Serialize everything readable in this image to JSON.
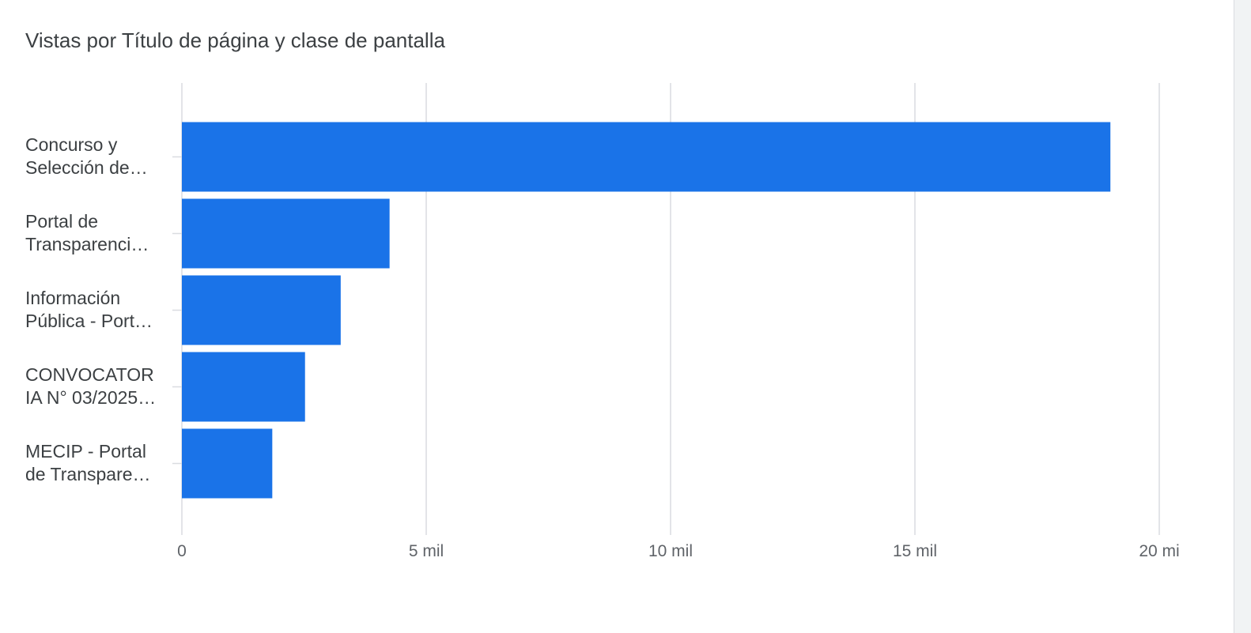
{
  "card": {
    "title": "Vistas por Título de página y clase de pantalla"
  },
  "colors": {
    "bar": "#1a73e8",
    "grid": "#dadce0",
    "text": "#3c4043",
    "tick_text": "#5f6368"
  },
  "chart_data": {
    "type": "bar",
    "orientation": "horizontal",
    "title": "Vistas por Título de página y clase de pantalla",
    "xlabel": "",
    "ylabel": "",
    "grid": true,
    "xlim": [
      0,
      20000
    ],
    "categories": [
      [
        "Concurso y",
        "Selección de…"
      ],
      [
        "Portal de",
        "Transparenci…"
      ],
      [
        "Información",
        "Pública - Port…"
      ],
      [
        "CONVOCATOR",
        "IA N° 03/2025…"
      ],
      [
        "MECIP - Portal",
        "de Transpare…"
      ]
    ],
    "values": [
      19000,
      4250,
      3250,
      2520,
      1850
    ],
    "x_ticks": [
      {
        "value": 0,
        "label": "0"
      },
      {
        "value": 5000,
        "label": "5 mil"
      },
      {
        "value": 10000,
        "label": "10 mil"
      },
      {
        "value": 15000,
        "label": "15 mil"
      },
      {
        "value": 20000,
        "label": "20 mi"
      }
    ]
  }
}
